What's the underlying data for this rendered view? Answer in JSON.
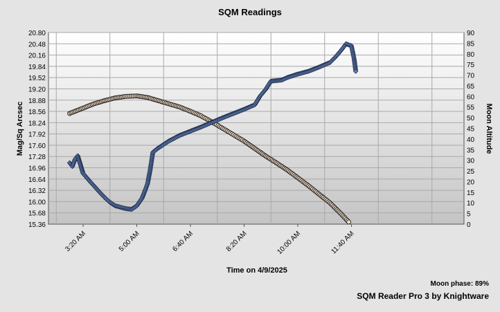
{
  "chart_data": {
    "type": "scatter",
    "title": "SQM Readings",
    "xlabel": "Time on 4/9/2025",
    "ylabel": "Mag/Sq Arcsec",
    "y2label": "Moon Altitude",
    "x_ticks": [
      "3:20 AM",
      "5:00 AM",
      "6:40 AM",
      "8:20 AM",
      "10:00 AM",
      "11:40 AM"
    ],
    "y_ticks": [
      "15.36",
      "15.68",
      "16.00",
      "16.32",
      "16.64",
      "16.96",
      "17.28",
      "17.60",
      "17.92",
      "18.24",
      "18.56",
      "18.88",
      "19.20",
      "19.52",
      "19.84",
      "20.16",
      "20.48",
      "20.80"
    ],
    "y2_ticks": [
      "0",
      "5",
      "10",
      "15",
      "20",
      "25",
      "30",
      "35",
      "40",
      "45",
      "50",
      "55",
      "60",
      "65",
      "70",
      "75",
      "80",
      "85",
      "90"
    ],
    "ylim": [
      15.36,
      20.8
    ],
    "y2lim": [
      0,
      90
    ],
    "grid": true,
    "footer_phase": "Moon phase: 89%",
    "footer_credit": "SQM Reader Pro 3 by Knightware",
    "colors": {
      "sqm": "#6a84b8",
      "moon": "#f2dcc6",
      "outline": "#1a1a1a",
      "plot_bg_top": "#ffffff",
      "plot_bg_bottom": "#c4c4c4"
    },
    "series": [
      {
        "id": "sqm",
        "axis": "left",
        "marker": "diamond",
        "points": [
          [
            "2:55 AM",
            17.1
          ],
          [
            "3:00 AM",
            17.0
          ],
          [
            "3:05 AM",
            17.2
          ],
          [
            "3:10 AM",
            17.3
          ],
          [
            "3:15 AM",
            17.05
          ],
          [
            "3:20 AM",
            16.8
          ],
          [
            "3:30 AM",
            16.62
          ],
          [
            "3:40 AM",
            16.45
          ],
          [
            "3:50 AM",
            16.28
          ],
          [
            "4:00 AM",
            16.12
          ],
          [
            "4:10 AM",
            15.98
          ],
          [
            "4:20 AM",
            15.88
          ],
          [
            "4:30 AM",
            15.84
          ],
          [
            "4:40 AM",
            15.8
          ],
          [
            "4:50 AM",
            15.78
          ],
          [
            "5:00 AM",
            15.88
          ],
          [
            "5:10 AM",
            16.1
          ],
          [
            "5:20 AM",
            16.5
          ],
          [
            "5:25 AM",
            16.9
          ],
          [
            "5:30 AM",
            17.4
          ],
          [
            "5:40 AM",
            17.52
          ],
          [
            "5:50 AM",
            17.62
          ],
          [
            "6:00 AM",
            17.72
          ],
          [
            "6:20 AM",
            17.88
          ],
          [
            "6:40 AM",
            18.0
          ],
          [
            "7:00 AM",
            18.12
          ],
          [
            "7:20 AM",
            18.25
          ],
          [
            "7:40 AM",
            18.38
          ],
          [
            "8:00 AM",
            18.5
          ],
          [
            "8:20 AM",
            18.62
          ],
          [
            "8:40 AM",
            18.75
          ],
          [
            "8:50 AM",
            19.0
          ],
          [
            "9:00 AM",
            19.18
          ],
          [
            "9:10 AM",
            19.42
          ],
          [
            "9:30 AM",
            19.45
          ],
          [
            "9:40 AM",
            19.52
          ],
          [
            "10:00 AM",
            19.62
          ],
          [
            "10:20 AM",
            19.7
          ],
          [
            "10:40 AM",
            19.82
          ],
          [
            "11:00 AM",
            19.95
          ],
          [
            "11:10 AM",
            20.1
          ],
          [
            "11:20 AM",
            20.28
          ],
          [
            "11:30 AM",
            20.48
          ],
          [
            "11:40 AM",
            20.42
          ],
          [
            "11:45 AM",
            20.05
          ],
          [
            "11:48 AM",
            19.7
          ]
        ]
      },
      {
        "id": "moon",
        "axis": "right",
        "marker": "circle",
        "points": [
          [
            "2:55 AM",
            52.0
          ],
          [
            "3:20 AM",
            54.5
          ],
          [
            "3:40 AM",
            56.5
          ],
          [
            "4:00 AM",
            58.0
          ],
          [
            "4:20 AM",
            59.3
          ],
          [
            "4:40 AM",
            60.0
          ],
          [
            "5:00 AM",
            60.2
          ],
          [
            "5:20 AM",
            59.5
          ],
          [
            "5:40 AM",
            58.0
          ],
          [
            "6:00 AM",
            56.5
          ],
          [
            "6:20 AM",
            55.0
          ],
          [
            "6:40 AM",
            53.0
          ],
          [
            "7:00 AM",
            50.8
          ],
          [
            "7:20 AM",
            48.0
          ],
          [
            "7:40 AM",
            45.0
          ],
          [
            "8:00 AM",
            42.0
          ],
          [
            "8:20 AM",
            39.0
          ],
          [
            "8:40 AM",
            35.5
          ],
          [
            "9:00 AM",
            32.0
          ],
          [
            "9:20 AM",
            28.8
          ],
          [
            "9:40 AM",
            25.5
          ],
          [
            "10:00 AM",
            21.8
          ],
          [
            "10:20 AM",
            18.0
          ],
          [
            "10:40 AM",
            14.0
          ],
          [
            "11:00 AM",
            10.0
          ],
          [
            "11:20 AM",
            5.0
          ],
          [
            "11:35 AM",
            1.0
          ]
        ]
      }
    ]
  }
}
